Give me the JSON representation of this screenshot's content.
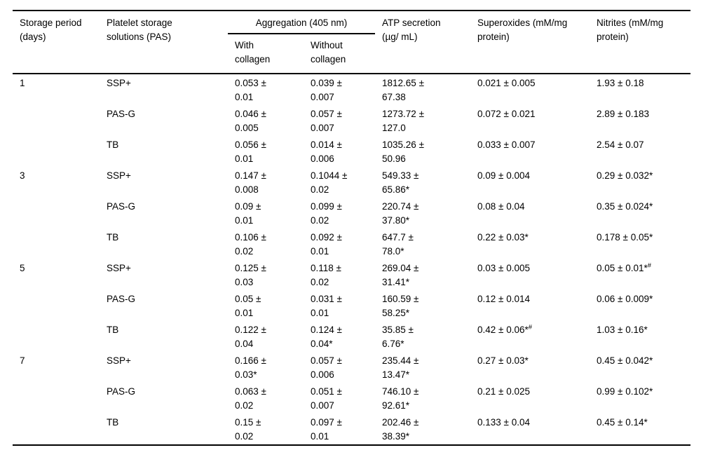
{
  "table": {
    "columns": {
      "storage_period": "Storage period\n(days)",
      "solutions": "Platelet storage\nsolutions (PAS)",
      "aggregation": "Aggregation (405 nm)",
      "with_collagen": "With\ncollagen",
      "without_collagen": "Without\ncollagen",
      "atp": "ATP secretion\n(µg/ mL)",
      "superoxides": "Superoxides (mM/mg\nprotein)",
      "nitrites": "Nitrites (mM/mg\nprotein)"
    },
    "groups": [
      {
        "period": "1",
        "rows": [
          {
            "solution": "SSP+",
            "with_collagen": "0.053 ±\n0.01",
            "without_collagen": "0.039 ±\n0.007",
            "atp": "1812.65 ±\n67.38",
            "superoxides": "0.021 ± 0.005",
            "nitrites": "1.93 ± 0.18"
          },
          {
            "solution": "PAS-G",
            "with_collagen": "0.046 ±\n0.005",
            "without_collagen": "0.057 ±\n0.007",
            "atp": "1273.72 ±\n127.0",
            "superoxides": "0.072 ± 0.021",
            "nitrites": "2.89 ± 0.183"
          },
          {
            "solution": "TB",
            "with_collagen": "0.056 ±\n0.01",
            "without_collagen": "0.014 ±\n0.006",
            "atp": "1035.26 ±\n50.96",
            "superoxides": "0.033 ± 0.007",
            "nitrites": "2.54 ± 0.07"
          }
        ]
      },
      {
        "period": "3",
        "rows": [
          {
            "solution": "SSP+",
            "with_collagen": "0.147 ±\n0.008",
            "without_collagen": "0.1044 ±\n0.02",
            "atp": "549.33 ±\n65.86*",
            "superoxides": "0.09 ± 0.004",
            "nitrites": "0.29 ± 0.032*"
          },
          {
            "solution": "PAS-G",
            "with_collagen": "0.09 ±\n0.01",
            "without_collagen": "0.099 ±\n0.02",
            "atp": "220.74 ±\n37.80*",
            "superoxides": "0.08 ± 0.04",
            "nitrites": "0.35 ± 0.024*"
          },
          {
            "solution": "TB",
            "with_collagen": "0.106 ±\n0.02",
            "without_collagen": "0.092 ±\n0.01",
            "atp": "647.7 ±\n78.0*",
            "superoxides": "0.22 ± 0.03*",
            "nitrites": "0.178 ± 0.05*"
          }
        ]
      },
      {
        "period": "5",
        "rows": [
          {
            "solution": "SSP+",
            "with_collagen": "0.125 ±\n0.03",
            "without_collagen": "0.118 ±\n0.02",
            "atp": "269.04 ±\n31.41*",
            "superoxides": "0.03 ± 0.005",
            "nitrites": "0.05 ± 0.01*^{#}"
          },
          {
            "solution": "PAS-G",
            "with_collagen": "0.05 ±\n0.01",
            "without_collagen": "0.031 ±\n0.01",
            "atp": "160.59 ±\n58.25*",
            "superoxides": "0.12 ± 0.014",
            "nitrites": "0.06 ± 0.009*"
          },
          {
            "solution": "TB",
            "with_collagen": "0.122 ±\n0.04",
            "without_collagen": "0.124 ±\n0.04*",
            "atp": "35.85 ±\n6.76*",
            "superoxides": "0.42 ± 0.06*^{#}",
            "nitrites": "1.03 ± 0.16*"
          }
        ]
      },
      {
        "period": "7",
        "rows": [
          {
            "solution": "SSP+",
            "with_collagen": "0.166 ±\n0.03*",
            "without_collagen": "0.057 ±\n0.006",
            "atp": "235.44 ±\n13.47*",
            "superoxides": "0.27 ± 0.03*",
            "nitrites": "0.45 ± 0.042*"
          },
          {
            "solution": "PAS-G",
            "with_collagen": "0.063 ±\n0.02",
            "without_collagen": "0.051 ±\n0.007",
            "atp": "746.10 ±\n92.61*",
            "superoxides": "0.21 ± 0.025",
            "nitrites": "0.99 ± 0.102*"
          },
          {
            "solution": "TB",
            "with_collagen": "0.15 ±\n0.02",
            "without_collagen": "0.097 ±\n0.01",
            "atp": "202.46 ±\n38.39*",
            "superoxides": "0.133 ± 0.04",
            "nitrites": "0.45 ± 0.14*"
          }
        ]
      }
    ]
  }
}
